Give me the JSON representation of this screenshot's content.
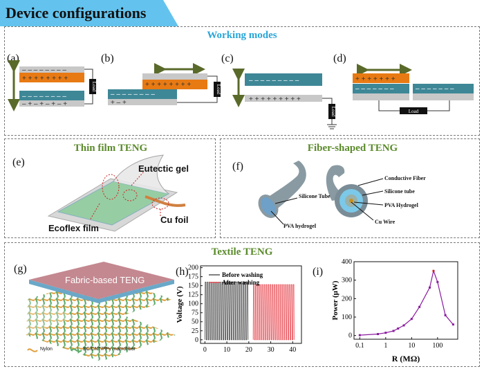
{
  "header": {
    "title": "Device configurations"
  },
  "working_modes": {
    "title": "Working modes",
    "labels": [
      "(a)",
      "(b)",
      "(c)",
      "(d)"
    ],
    "load_text": "Load"
  },
  "thin_film": {
    "title": "Thin film TENG",
    "label": "(e)",
    "eutectic": "Eutectic gel",
    "ecoflex": "Ecoflex film",
    "cu_foil": "Cu foil"
  },
  "fiber": {
    "title": "Fiber-shaped TENG",
    "label": "(f)",
    "silicone_tube_left": "Silicone Tube",
    "pva_left": "PVA hydrogel",
    "conductive": "Conductive Fiber",
    "silicone_tube_right": "Silicone tube",
    "pva_right": "PVA Hydrogel",
    "cu_wire": "Cu Wire"
  },
  "textile": {
    "title": "Textile TENG",
    "label_g": "(g)",
    "fabric_label": "Fabric-based TENG",
    "legend_nylon": "Nylon",
    "legend_bc": "BC/CNT/PPy macrofiber",
    "label_h": "(h)",
    "label_i": "(i)"
  },
  "colors": {
    "banner": "#63c3ee",
    "title_blue": "#2aa6d8",
    "title_green": "#5a8a2a",
    "orange": "#e87a14",
    "teal": "#3e8797",
    "grey": "#c8c8c8"
  },
  "chart_data": [
    {
      "type": "line",
      "title": "",
      "xlabel": "",
      "ylabel": "Voltage (V)",
      "xlim": [
        -2,
        44
      ],
      "ylim": [
        -10,
        205
      ],
      "xticks": [
        0,
        10,
        20,
        30,
        40
      ],
      "yticks": [
        0,
        25,
        50,
        75,
        100,
        125,
        150,
        175,
        200
      ],
      "series": [
        {
          "name": "Before washing",
          "color": "#555555",
          "x_range": [
            0,
            20
          ],
          "cycles": 21,
          "min": 0,
          "max": 160
        },
        {
          "name": "After washing",
          "color": "#e8545c",
          "x_range": [
            22,
            41
          ],
          "cycles": 20,
          "min": 0,
          "max": 153
        }
      ]
    },
    {
      "type": "line",
      "title": "",
      "xlabel": "R (MΩ)",
      "ylabel": "Power (μW)",
      "xscale": "log",
      "xlim": [
        0.06,
        600
      ],
      "ylim": [
        -20,
        400
      ],
      "xtick_labels": [
        "0.1",
        "1",
        "10",
        "100"
      ],
      "yticks": [
        0,
        100,
        200,
        300,
        400
      ],
      "series": [
        {
          "name": "Power",
          "color": "#8a1a9e",
          "x": [
            0.1,
            0.5,
            1,
            2,
            3,
            5,
            10,
            20,
            50,
            70,
            100,
            200,
            400
          ],
          "y": [
            2,
            8,
            15,
            25,
            38,
            55,
            90,
            155,
            260,
            350,
            290,
            110,
            60
          ]
        }
      ]
    }
  ]
}
